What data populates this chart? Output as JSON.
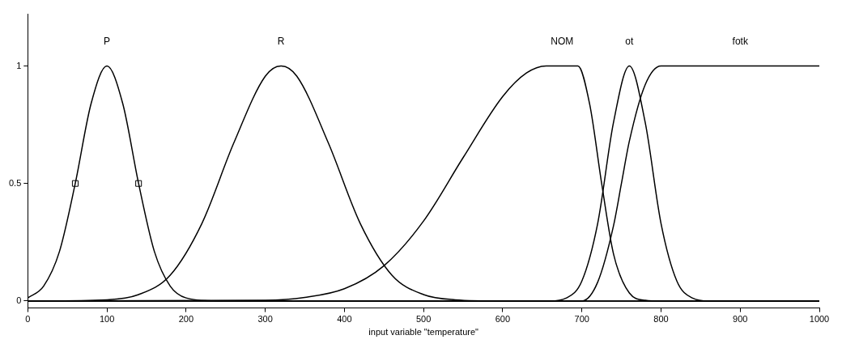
{
  "chart_data": {
    "type": "line",
    "xlabel": "input variable \"temperature\"",
    "xlim": [
      0,
      1000
    ],
    "xticks": [
      0,
      100,
      200,
      300,
      400,
      500,
      600,
      700,
      800,
      900,
      1000
    ],
    "ylim": [
      -0.03,
      1.22
    ],
    "yticks": [
      0,
      0.5,
      1
    ],
    "grid": false,
    "legend": false,
    "marker": "none",
    "line_style": "solid",
    "series": [
      {
        "name": "P",
        "color": "#000000",
        "x": [
          0,
          20,
          40,
          60,
          80,
          100,
          120,
          140,
          160,
          180,
          200,
          240,
          300,
          1000
        ],
        "values": [
          0.013,
          0.063,
          0.21,
          0.5,
          0.84,
          1,
          0.84,
          0.5,
          0.21,
          0.063,
          0.013,
          0,
          0,
          0
        ]
      },
      {
        "name": "R",
        "color": "#000000",
        "x": [
          0,
          100,
          140,
          180,
          220,
          260,
          300,
          320,
          340,
          380,
          420,
          460,
          500,
          540,
          600,
          1000
        ],
        "values": [
          0,
          0.005,
          0.027,
          0.11,
          0.33,
          0.67,
          0.956,
          1,
          0.956,
          0.67,
          0.33,
          0.11,
          0.027,
          0.005,
          0,
          0
        ]
      },
      {
        "name": "NOM",
        "color": "#000000",
        "x": [
          0,
          300,
          350,
          400,
          450,
          500,
          550,
          600,
          630,
          655,
          695,
          710,
          725,
          740,
          760,
          780,
          800,
          1000
        ],
        "values": [
          0,
          0.003,
          0.015,
          0.052,
          0.15,
          0.34,
          0.61,
          0.87,
          0.97,
          1,
          1,
          0.835,
          0.5,
          0.2,
          0.034,
          0.003,
          0,
          0
        ]
      },
      {
        "name": "ot",
        "color": "#000000",
        "x": [
          0,
          660,
          680,
          700,
          720,
          740,
          760,
          780,
          800,
          820,
          840,
          860,
          1000
        ],
        "values": [
          0,
          0,
          0.012,
          0.085,
          0.33,
          0.76,
          1,
          0.76,
          0.33,
          0.085,
          0.012,
          0,
          0
        ]
      },
      {
        "name": "fotk",
        "color": "#000000",
        "x": [
          0,
          700,
          720,
          740,
          750,
          760,
          780,
          800,
          1000
        ],
        "values": [
          0,
          0,
          0.08,
          0.32,
          0.5,
          0.68,
          0.92,
          1,
          1
        ]
      },
      {
        "type": "scatter",
        "marker": "square",
        "color": "#000000",
        "x": [
          60,
          140
        ],
        "values": [
          0.5,
          0.5
        ]
      }
    ]
  }
}
